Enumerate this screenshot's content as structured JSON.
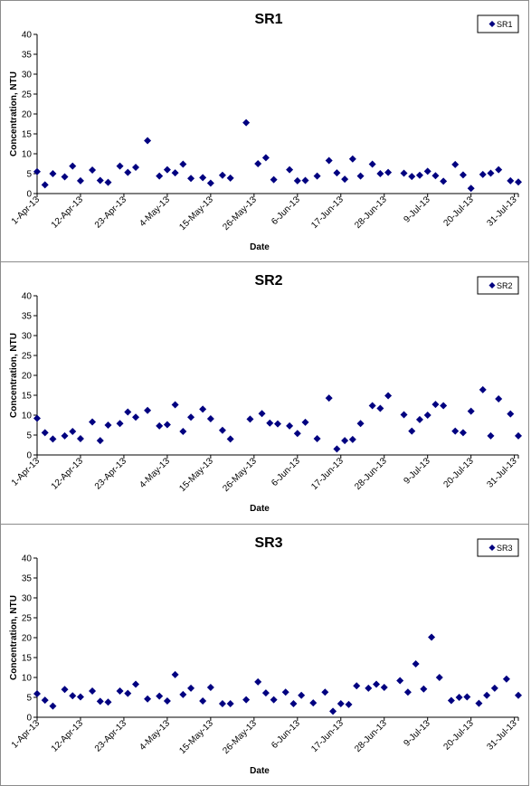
{
  "chart_data": [
    {
      "type": "scatter",
      "title": "SR1",
      "xlabel": "Date",
      "ylabel": "Concentration, NTU",
      "ylim": [
        0,
        40
      ],
      "yticks": [
        "0",
        "5",
        "10",
        "15",
        "20",
        "25",
        "30",
        "35",
        "40"
      ],
      "xlim": [
        "2013-04-01",
        "2013-08-01"
      ],
      "xticks": [
        "1-Apr-13",
        "12-Apr-13",
        "23-Apr-13",
        "4-May-13",
        "15-May-13",
        "26-May-13",
        "6-Jun-13",
        "17-Jun-13",
        "28-Jun-13",
        "9-Jul-13",
        "20-Jul-13",
        "31-Jul-13"
      ],
      "grid": false,
      "legend_position": "top-right",
      "marker_color": "#000080",
      "series": [
        {
          "name": "SR1",
          "points": [
            [
              "2013-04-01",
              5.5
            ],
            [
              "2013-04-03",
              2.2
            ],
            [
              "2013-04-05",
              5.0
            ],
            [
              "2013-04-08",
              4.2
            ],
            [
              "2013-04-10",
              6.9
            ],
            [
              "2013-04-12",
              3.2
            ],
            [
              "2013-04-15",
              5.9
            ],
            [
              "2013-04-17",
              3.3
            ],
            [
              "2013-04-19",
              2.8
            ],
            [
              "2013-04-22",
              6.9
            ],
            [
              "2013-04-24",
              5.3
            ],
            [
              "2013-04-26",
              6.6
            ],
            [
              "2013-04-29",
              13.3
            ],
            [
              "2013-05-02",
              4.4
            ],
            [
              "2013-05-04",
              6.0
            ],
            [
              "2013-05-06",
              5.2
            ],
            [
              "2013-05-08",
              7.4
            ],
            [
              "2013-05-10",
              3.8
            ],
            [
              "2013-05-13",
              4.0
            ],
            [
              "2013-05-15",
              2.6
            ],
            [
              "2013-05-18",
              4.6
            ],
            [
              "2013-05-20",
              3.9
            ],
            [
              "2013-05-24",
              17.8
            ],
            [
              "2013-05-27",
              7.5
            ],
            [
              "2013-05-29",
              9.0
            ],
            [
              "2013-05-31",
              3.5
            ],
            [
              "2013-06-04",
              6.0
            ],
            [
              "2013-06-06",
              3.2
            ],
            [
              "2013-06-08",
              3.3
            ],
            [
              "2013-06-11",
              4.4
            ],
            [
              "2013-06-14",
              8.3
            ],
            [
              "2013-06-16",
              5.2
            ],
            [
              "2013-06-18",
              3.6
            ],
            [
              "2013-06-20",
              8.7
            ],
            [
              "2013-06-22",
              4.4
            ],
            [
              "2013-06-25",
              7.4
            ],
            [
              "2013-06-27",
              5.0
            ],
            [
              "2013-06-29",
              5.3
            ],
            [
              "2013-07-03",
              5.1
            ],
            [
              "2013-07-05",
              4.3
            ],
            [
              "2013-07-07",
              4.6
            ],
            [
              "2013-07-09",
              5.6
            ],
            [
              "2013-07-11",
              4.5
            ],
            [
              "2013-07-13",
              3.1
            ],
            [
              "2013-07-16",
              7.3
            ],
            [
              "2013-07-18",
              4.7
            ],
            [
              "2013-07-20",
              1.3
            ],
            [
              "2013-07-23",
              4.8
            ],
            [
              "2013-07-25",
              5.1
            ],
            [
              "2013-07-27",
              6.0
            ],
            [
              "2013-07-30",
              3.2
            ],
            [
              "2013-08-01",
              2.9
            ]
          ]
        }
      ]
    },
    {
      "type": "scatter",
      "title": "SR2",
      "xlabel": "Date",
      "ylabel": "Concentration, NTU",
      "ylim": [
        0,
        40
      ],
      "yticks": [
        "0",
        "5",
        "10",
        "15",
        "20",
        "25",
        "30",
        "35",
        "40"
      ],
      "xlim": [
        "2013-04-01",
        "2013-08-01"
      ],
      "xticks": [
        "1-Apr-13",
        "12-Apr-13",
        "23-Apr-13",
        "4-May-13",
        "15-May-13",
        "26-May-13",
        "6-Jun-13",
        "17-Jun-13",
        "28-Jun-13",
        "9-Jul-13",
        "20-Jul-13",
        "31-Jul-13"
      ],
      "grid": false,
      "legend_position": "top-right",
      "marker_color": "#000080",
      "series": [
        {
          "name": "SR2",
          "points": [
            [
              "2013-04-01",
              9.2
            ],
            [
              "2013-04-03",
              5.6
            ],
            [
              "2013-04-05",
              4.0
            ],
            [
              "2013-04-08",
              4.8
            ],
            [
              "2013-04-10",
              5.9
            ],
            [
              "2013-04-12",
              4.1
            ],
            [
              "2013-04-15",
              8.3
            ],
            [
              "2013-04-17",
              3.6
            ],
            [
              "2013-04-19",
              7.5
            ],
            [
              "2013-04-22",
              7.9
            ],
            [
              "2013-04-24",
              10.8
            ],
            [
              "2013-04-26",
              9.5
            ],
            [
              "2013-04-29",
              11.2
            ],
            [
              "2013-05-02",
              7.3
            ],
            [
              "2013-05-04",
              7.6
            ],
            [
              "2013-05-06",
              12.6
            ],
            [
              "2013-05-08",
              5.9
            ],
            [
              "2013-05-10",
              9.5
            ],
            [
              "2013-05-13",
              11.5
            ],
            [
              "2013-05-15",
              9.1
            ],
            [
              "2013-05-18",
              6.2
            ],
            [
              "2013-05-20",
              4.0
            ],
            [
              "2013-05-25",
              9.0
            ],
            [
              "2013-05-28",
              10.4
            ],
            [
              "2013-05-30",
              8.0
            ],
            [
              "2013-06-01",
              7.8
            ],
            [
              "2013-06-04",
              7.3
            ],
            [
              "2013-06-06",
              5.4
            ],
            [
              "2013-06-08",
              8.2
            ],
            [
              "2013-06-11",
              4.1
            ],
            [
              "2013-06-14",
              14.3
            ],
            [
              "2013-06-16",
              1.5
            ],
            [
              "2013-06-18",
              3.6
            ],
            [
              "2013-06-20",
              3.9
            ],
            [
              "2013-06-22",
              7.9
            ],
            [
              "2013-06-25",
              12.4
            ],
            [
              "2013-06-27",
              11.7
            ],
            [
              "2013-06-29",
              14.9
            ],
            [
              "2013-07-03",
              10.1
            ],
            [
              "2013-07-05",
              6.0
            ],
            [
              "2013-07-07",
              8.9
            ],
            [
              "2013-07-09",
              10.0
            ],
            [
              "2013-07-11",
              12.7
            ],
            [
              "2013-07-13",
              12.4
            ],
            [
              "2013-07-16",
              6.0
            ],
            [
              "2013-07-18",
              5.6
            ],
            [
              "2013-07-20",
              11.0
            ],
            [
              "2013-07-23",
              16.4
            ],
            [
              "2013-07-25",
              4.8
            ],
            [
              "2013-07-27",
              14.1
            ],
            [
              "2013-07-30",
              10.3
            ],
            [
              "2013-08-01",
              4.8
            ]
          ]
        }
      ]
    },
    {
      "type": "scatter",
      "title": "SR3",
      "xlabel": "Date",
      "ylabel": "Concentration, NTU",
      "ylim": [
        0,
        40
      ],
      "yticks": [
        "0",
        "5",
        "10",
        "15",
        "20",
        "25",
        "30",
        "35",
        "40"
      ],
      "xlim": [
        "2013-04-01",
        "2013-08-01"
      ],
      "xticks": [
        "1-Apr-13",
        "12-Apr-13",
        "23-Apr-13",
        "4-May-13",
        "15-May-13",
        "26-May-13",
        "6-Jun-13",
        "17-Jun-13",
        "28-Jun-13",
        "9-Jul-13",
        "20-Jul-13",
        "31-Jul-13"
      ],
      "grid": false,
      "legend_position": "top-right",
      "marker_color": "#000080",
      "series": [
        {
          "name": "SR3",
          "points": [
            [
              "2013-04-01",
              5.9
            ],
            [
              "2013-04-03",
              4.3
            ],
            [
              "2013-04-05",
              2.8
            ],
            [
              "2013-04-08",
              7.0
            ],
            [
              "2013-04-10",
              5.4
            ],
            [
              "2013-04-12",
              5.1
            ],
            [
              "2013-04-15",
              6.6
            ],
            [
              "2013-04-17",
              4.0
            ],
            [
              "2013-04-19",
              3.8
            ],
            [
              "2013-04-22",
              6.6
            ],
            [
              "2013-04-24",
              6.0
            ],
            [
              "2013-04-26",
              8.3
            ],
            [
              "2013-04-29",
              4.6
            ],
            [
              "2013-05-02",
              5.3
            ],
            [
              "2013-05-04",
              4.1
            ],
            [
              "2013-05-06",
              10.7
            ],
            [
              "2013-05-08",
              5.7
            ],
            [
              "2013-05-10",
              7.3
            ],
            [
              "2013-05-13",
              4.1
            ],
            [
              "2013-05-15",
              7.5
            ],
            [
              "2013-05-18",
              3.4
            ],
            [
              "2013-05-20",
              3.4
            ],
            [
              "2013-05-24",
              4.4
            ],
            [
              "2013-05-27",
              8.9
            ],
            [
              "2013-05-29",
              6.1
            ],
            [
              "2013-05-31",
              4.4
            ],
            [
              "2013-06-03",
              6.3
            ],
            [
              "2013-06-05",
              3.4
            ],
            [
              "2013-06-07",
              5.5
            ],
            [
              "2013-06-10",
              3.6
            ],
            [
              "2013-06-13",
              6.3
            ],
            [
              "2013-06-15",
              1.5
            ],
            [
              "2013-06-17",
              3.4
            ],
            [
              "2013-06-19",
              3.2
            ],
            [
              "2013-06-21",
              7.9
            ],
            [
              "2013-06-24",
              7.3
            ],
            [
              "2013-06-26",
              8.3
            ],
            [
              "2013-06-28",
              7.5
            ],
            [
              "2013-07-02",
              9.2
            ],
            [
              "2013-07-04",
              6.3
            ],
            [
              "2013-07-06",
              13.4
            ],
            [
              "2013-07-08",
              7.1
            ],
            [
              "2013-07-10",
              20.1
            ],
            [
              "2013-07-12",
              10.0
            ],
            [
              "2013-07-15",
              4.2
            ],
            [
              "2013-07-17",
              5.0
            ],
            [
              "2013-07-19",
              5.1
            ],
            [
              "2013-07-22",
              3.5
            ],
            [
              "2013-07-24",
              5.5
            ],
            [
              "2013-07-26",
              7.3
            ],
            [
              "2013-07-29",
              9.6
            ],
            [
              "2013-08-01",
              5.5
            ]
          ]
        }
      ]
    }
  ]
}
